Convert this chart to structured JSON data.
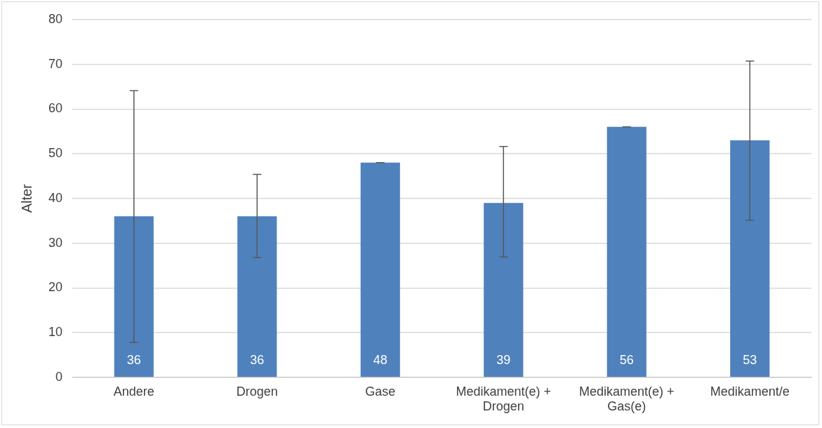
{
  "chart_data": {
    "type": "bar",
    "ylabel": "Alter",
    "categories": [
      "Andere",
      "Drogen",
      "Gase",
      "Medikament(e) + Drogen",
      "Medikament(e) + Gas(e)",
      "Medikament/e"
    ],
    "values": [
      36,
      36,
      48,
      39,
      56,
      53
    ],
    "errors": [
      [
        7.8,
        64.1
      ],
      [
        26.8,
        45.4
      ],
      0,
      [
        26.9,
        51.6
      ],
      0,
      [
        35.1,
        70.7
      ]
    ],
    "color": "#4f81bd",
    "ylim": [
      0,
      80
    ],
    "yticks": [
      0,
      10,
      20,
      30,
      40,
      50,
      60,
      70,
      80
    ],
    "grid": "y",
    "legend": false,
    "data_labels": true
  }
}
